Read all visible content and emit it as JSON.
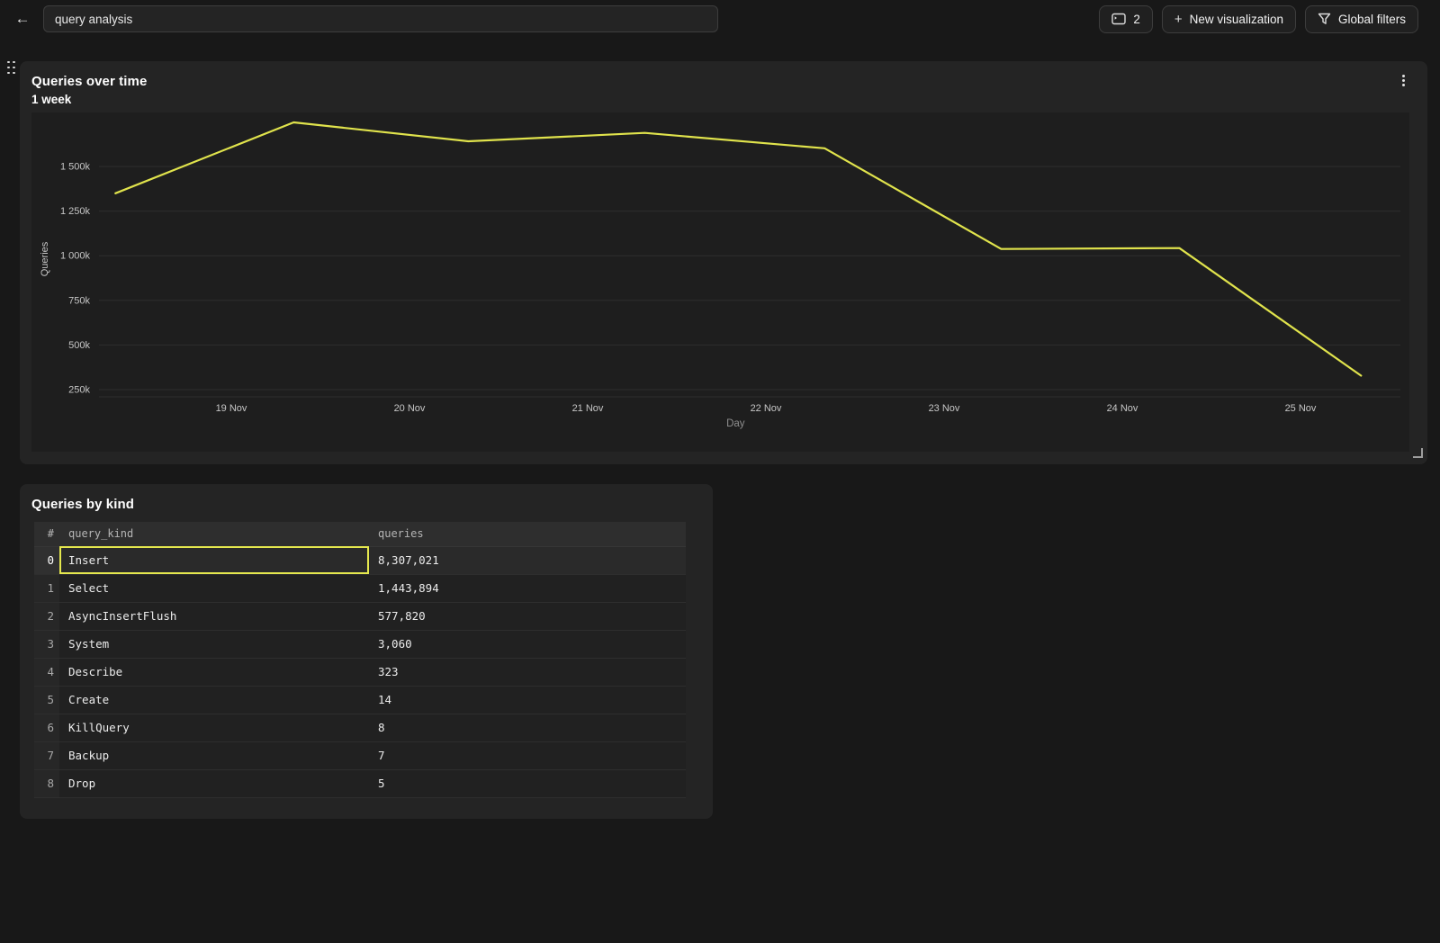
{
  "topbar": {
    "back_icon": "←",
    "title_input": {
      "value": "query analysis"
    },
    "buttons": {
      "queries_count": {
        "icon": "console-icon",
        "label": "2"
      },
      "new_visualization": {
        "icon": "plus-icon",
        "label": "New visualization"
      },
      "global_filters": {
        "icon": "funnel-icon",
        "label": "Global filters"
      }
    }
  },
  "chart_panel": {
    "title": "Queries over time",
    "subtitle": "1 week",
    "menu_icon": "kebab-menu-icon",
    "resize_icon": "resize-corner-icon"
  },
  "chart_data": {
    "type": "line",
    "title": "Queries over time",
    "subtitle": "1 week",
    "xlabel": "Day",
    "ylabel": "Queries",
    "grid": true,
    "legend": "none",
    "line_color": "#e0e34c",
    "x_ticks": [
      {
        "day": 19,
        "label": "19 Nov"
      },
      {
        "day": 20,
        "label": "20 Nov"
      },
      {
        "day": 21,
        "label": "21 Nov"
      },
      {
        "day": 22,
        "label": "22 Nov"
      },
      {
        "day": 23,
        "label": "23 Nov"
      },
      {
        "day": 24,
        "label": "24 Nov"
      },
      {
        "day": 25,
        "label": "25 Nov"
      }
    ],
    "y_ticks": [
      {
        "value": 250000,
        "label": "250k"
      },
      {
        "value": 500000,
        "label": "500k"
      },
      {
        "value": 750000,
        "label": "750k"
      },
      {
        "value": 1000000,
        "label": "1 000k"
      },
      {
        "value": 1250000,
        "label": "1 250k"
      },
      {
        "value": 1500000,
        "label": "1 500k"
      }
    ],
    "series": [
      {
        "name": "Queries",
        "points": [
          {
            "day": 18.35,
            "value": 1350000
          },
          {
            "day": 19.35,
            "value": 1747000
          },
          {
            "day": 20.33,
            "value": 1641000
          },
          {
            "day": 21.32,
            "value": 1688000
          },
          {
            "day": 22.33,
            "value": 1602000
          },
          {
            "day": 23.32,
            "value": 1038000
          },
          {
            "day": 24.32,
            "value": 1043000
          },
          {
            "day": 25.34,
            "value": 328000
          }
        ]
      }
    ]
  },
  "table_panel": {
    "title": "Queries by kind",
    "columns": [
      "#",
      "query_kind",
      "queries"
    ],
    "rows": [
      {
        "index": "0",
        "query_kind": "Insert",
        "queries": "8,307,021",
        "selected_cell": "query_kind",
        "highlighted": true
      },
      {
        "index": "1",
        "query_kind": "Select",
        "queries": "1,443,894"
      },
      {
        "index": "2",
        "query_kind": "AsyncInsertFlush",
        "queries": "577,820"
      },
      {
        "index": "3",
        "query_kind": "System",
        "queries": "3,060"
      },
      {
        "index": "4",
        "query_kind": "Describe",
        "queries": "323"
      },
      {
        "index": "5",
        "query_kind": "Create",
        "queries": "14"
      },
      {
        "index": "6",
        "query_kind": "KillQuery",
        "queries": "8"
      },
      {
        "index": "7",
        "query_kind": "Backup",
        "queries": "7"
      },
      {
        "index": "8",
        "query_kind": "Drop",
        "queries": "5"
      }
    ]
  },
  "colors": {
    "page_bg": "#181818",
    "panel_bg": "#242424",
    "chart_bg": "#1e1e1e",
    "grid_line": "#2f2f2f",
    "accent_yellow": "#e5e84e",
    "tick_text": "#c6c6c6",
    "axis_label_text": "#8f8f8f"
  }
}
